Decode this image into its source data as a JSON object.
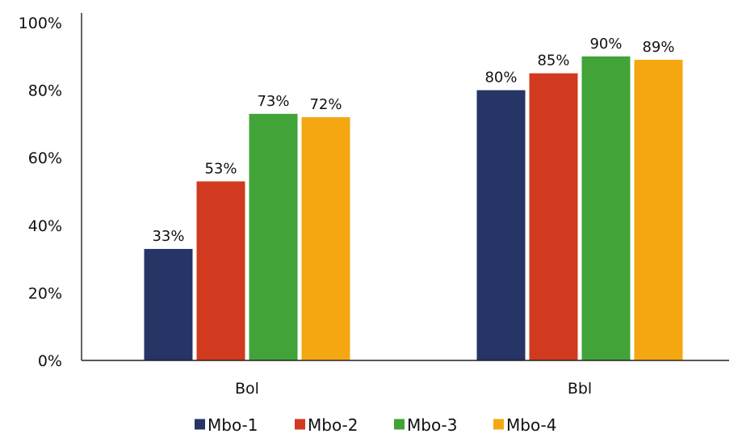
{
  "chart_data": {
    "type": "bar",
    "categories": [
      "Bol",
      "Bbl"
    ],
    "series": [
      {
        "name": "Mbo-1",
        "values": [
          33,
          80
        ],
        "color": "#263466"
      },
      {
        "name": "Mbo-2",
        "values": [
          53,
          85
        ],
        "color": "#D13A1F"
      },
      {
        "name": "Mbo-3",
        "values": [
          73,
          90
        ],
        "color": "#41A338"
      },
      {
        "name": "Mbo-4",
        "values": [
          72,
          89
        ],
        "color": "#F5A712"
      }
    ],
    "data_labels": [
      [
        "33%",
        "80%"
      ],
      [
        "53%",
        "85%"
      ],
      [
        "73%",
        "90%"
      ],
      [
        "72%",
        "89%"
      ]
    ],
    "y_ticks": [
      "0%",
      "20%",
      "40%",
      "60%",
      "80%",
      "100%"
    ],
    "y_tick_values": [
      0,
      20,
      40,
      60,
      80,
      100
    ],
    "ylim": [
      0,
      100
    ],
    "title": "",
    "xlabel": "",
    "ylabel": "",
    "grid": false,
    "legend_position": "bottom"
  }
}
